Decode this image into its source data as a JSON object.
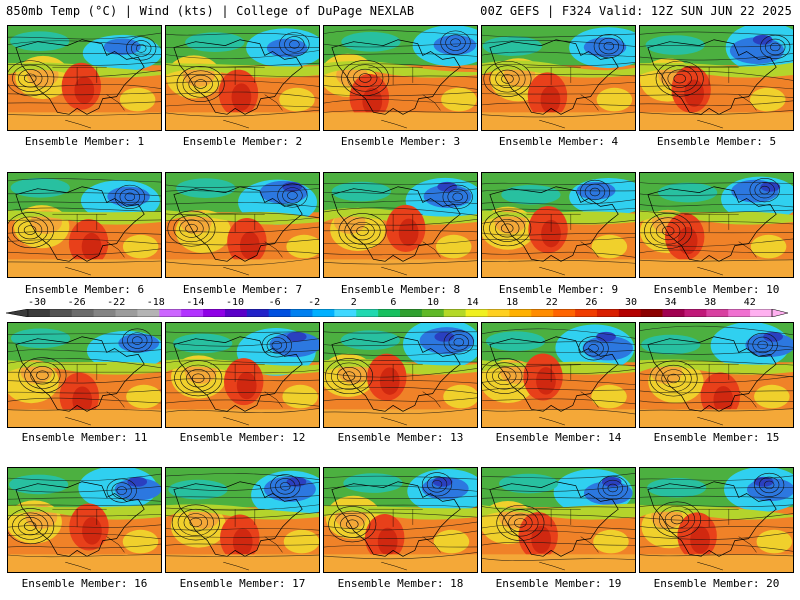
{
  "header": {
    "left": "850mb Temp (°C) | Wind (kts) | College of DuPage NEXLAB",
    "right": "00Z GEFS | F324 Valid: 12Z SUN JUN 22 2025"
  },
  "colorbar": {
    "ticks": [
      "-30",
      "-26",
      "-22",
      "-18",
      "-14",
      "-10",
      "-6",
      "-2",
      "2",
      "6",
      "10",
      "14",
      "18",
      "22",
      "26",
      "30",
      "34",
      "38",
      "42"
    ],
    "colors": [
      "#3c3c3c",
      "#545454",
      "#6c6c6c",
      "#848484",
      "#9c9c9c",
      "#b4b4b4",
      "#cc66ff",
      "#b233ff",
      "#8f00e6",
      "#5a00c8",
      "#2222c8",
      "#0050e0",
      "#0080f0",
      "#00b0ff",
      "#40d8ff",
      "#22d8b0",
      "#18c060",
      "#30a030",
      "#60b828",
      "#b4d828",
      "#f0f020",
      "#ffd020",
      "#ffb000",
      "#ff8c00",
      "#ff6400",
      "#f03c00",
      "#d81e00",
      "#b40000",
      "#8c0000",
      "#a00050",
      "#c01878",
      "#d840a0",
      "#f070d0",
      "#ffb0f0"
    ]
  },
  "members": [
    {
      "label": "Ensemble Member: 1"
    },
    {
      "label": "Ensemble Member: 2"
    },
    {
      "label": "Ensemble Member: 3"
    },
    {
      "label": "Ensemble Member: 4"
    },
    {
      "label": "Ensemble Member: 5"
    },
    {
      "label": "Ensemble Member: 6"
    },
    {
      "label": "Ensemble Member: 7"
    },
    {
      "label": "Ensemble Member: 8"
    },
    {
      "label": "Ensemble Member: 9"
    },
    {
      "label": "Ensemble Member: 10"
    },
    {
      "label": "Ensemble Member: 11"
    },
    {
      "label": "Ensemble Member: 12"
    },
    {
      "label": "Ensemble Member: 13"
    },
    {
      "label": "Ensemble Member: 14"
    },
    {
      "label": "Ensemble Member: 15"
    },
    {
      "label": "Ensemble Member: 16"
    },
    {
      "label": "Ensemble Member: 17"
    },
    {
      "label": "Ensemble Member: 18"
    },
    {
      "label": "Ensemble Member: 19"
    },
    {
      "label": "Ensemble Member: 20"
    }
  ]
}
